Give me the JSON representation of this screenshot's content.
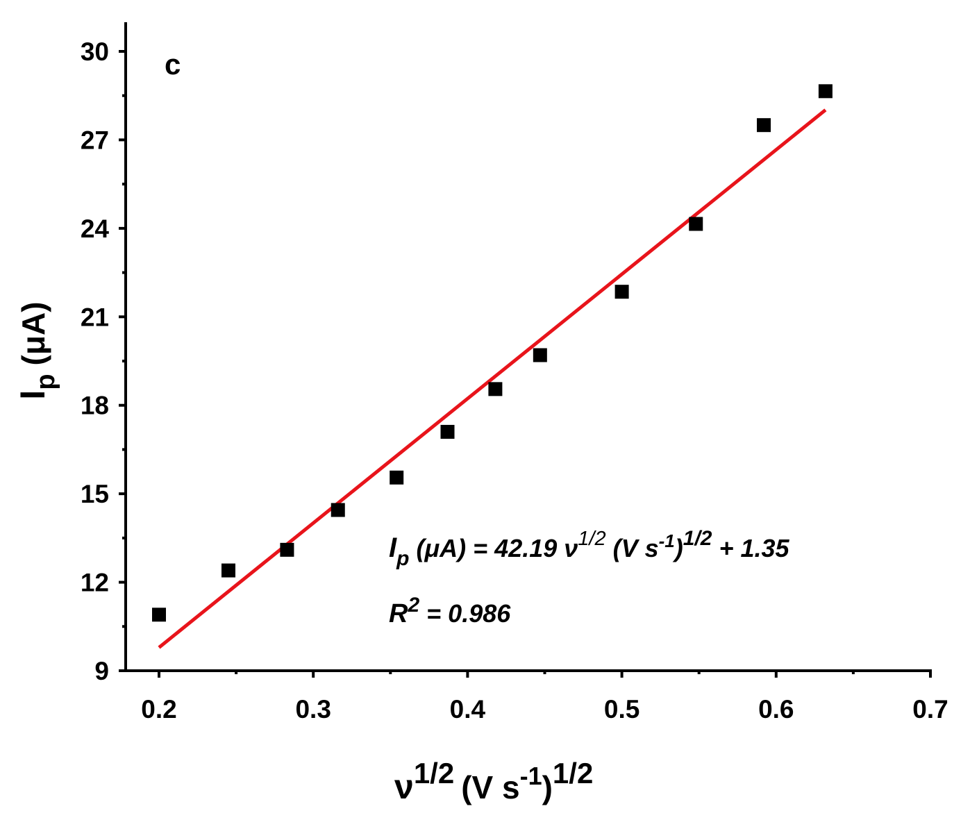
{
  "chart_data": {
    "type": "scatter",
    "panel_label": "c",
    "xlabel": {
      "base": "ν",
      "sup1": "1/2",
      "units_open": "(V s",
      "units_sup": "-1",
      "units_close": ")",
      "sup2": "1/2"
    },
    "ylabel": {
      "base": "I",
      "sub": "p",
      "units": "(μA)"
    },
    "xlim": [
      0.18,
      0.7
    ],
    "ylim": [
      9,
      31
    ],
    "xticks": [
      0.2,
      0.3,
      0.4,
      0.5,
      0.6,
      0.7
    ],
    "xtick_labels": [
      "0.2",
      "0.3",
      "0.4",
      "0.5",
      "0.6",
      "0.7"
    ],
    "yticks": [
      9,
      12,
      15,
      18,
      21,
      24,
      27,
      30
    ],
    "ytick_labels": [
      "9",
      "12",
      "15",
      "18",
      "21",
      "24",
      "27",
      "30"
    ],
    "grid": false,
    "series": [
      {
        "marker": "square",
        "color": "#000000",
        "x": [
          0.2,
          0.245,
          0.283,
          0.316,
          0.354,
          0.387,
          0.418,
          0.447,
          0.5,
          0.548,
          0.592,
          0.632
        ],
        "y": [
          10.9,
          12.4,
          13.1,
          14.45,
          15.55,
          17.1,
          18.55,
          19.7,
          21.85,
          24.15,
          27.5,
          28.65
        ]
      }
    ],
    "fit_line": {
      "color": "#e8141b",
      "slope": 42.19,
      "intercept": 1.35,
      "x_start": 0.2,
      "x_end": 0.632
    },
    "annotations": {
      "equation": {
        "I": "I",
        "p": "p",
        "lhs_rest": " (μA) = 42.19 ν",
        "sup_half_1": "1/2",
        "units_open": " (V s",
        "units_sup": "-1",
        "units_close": ")",
        "sup_half_2": "1/2",
        "rhs": " + 1.35"
      },
      "r_squared": {
        "R": "R",
        "sup": "2",
        "rest": " = 0.986"
      }
    }
  }
}
